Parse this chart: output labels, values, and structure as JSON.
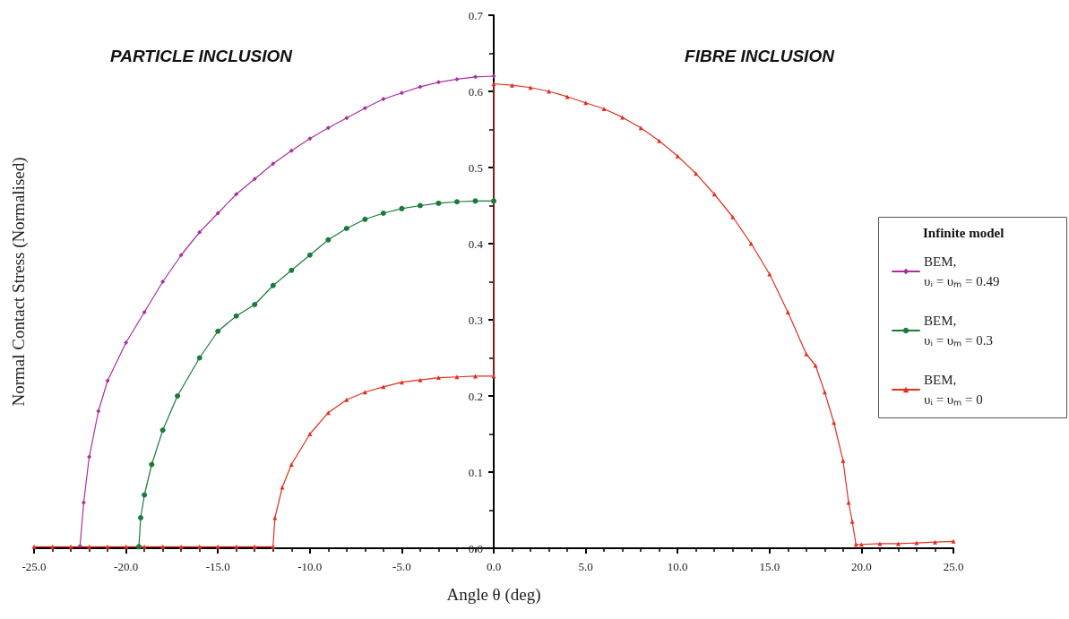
{
  "chart_data": {
    "type": "line",
    "xlabel": "Angle θ (deg)",
    "ylabel": "Normal Contact Stress (Normalised)",
    "legend_title": "Infinite model",
    "annotations": [
      "PARTICLE INCLUSION",
      "FIBRE INCLUSION"
    ],
    "xlim": [
      -25,
      25
    ],
    "xticks": [
      {
        "value": -25,
        "label": "-25.0"
      },
      {
        "value": -20,
        "label": "-20.0"
      },
      {
        "value": -15,
        "label": "-15.0"
      },
      {
        "value": -10,
        "label": "-10.0"
      },
      {
        "value": -5,
        "label": "-5.0"
      },
      {
        "value": 0,
        "label": "0.0"
      },
      {
        "value": 5,
        "label": "5.0"
      },
      {
        "value": 10,
        "label": "10.0"
      },
      {
        "value": 15,
        "label": "15.0"
      },
      {
        "value": 20,
        "label": "20.0"
      },
      {
        "value": 25,
        "label": "25.0"
      }
    ],
    "ylim": [
      0,
      0.7
    ],
    "yticks": [
      {
        "value": 0,
        "label": "0.0"
      },
      0.1,
      0.2,
      0.3,
      0.4,
      0.5,
      0.6,
      0.7
    ],
    "grid": false,
    "legend": "right",
    "series": [
      {
        "name": "BEM, υᵢ = υₘ = 0.49",
        "color": "#a8309f",
        "marker": "diamond",
        "x": [
          -22.5,
          -22.3,
          -22,
          -21.5,
          -21,
          -20,
          -19,
          -18,
          -17,
          -16,
          -15,
          -14,
          -13,
          -12,
          -11,
          -10,
          -9,
          -8,
          -7,
          -6,
          -5,
          -4,
          -3,
          -2,
          -1,
          0
        ],
        "values": [
          0.003,
          0.06,
          0.12,
          0.18,
          0.22,
          0.27,
          0.31,
          0.35,
          0.385,
          0.415,
          0.44,
          0.465,
          0.485,
          0.505,
          0.522,
          0.538,
          0.552,
          0.565,
          0.578,
          0.59,
          0.598,
          0.606,
          0.612,
          0.616,
          0.619,
          0.62
        ]
      },
      {
        "name": "BEM, υᵢ = υₘ = 0.3",
        "color": "#1a7a3a",
        "marker": "circle",
        "x": [
          -19.3,
          -19.2,
          -19,
          -18.6,
          -18,
          -17.2,
          -16,
          -15,
          -14,
          -13,
          -12,
          -11,
          -10,
          -9,
          -8,
          -7,
          -6,
          -5,
          -4,
          -3,
          -2,
          -1,
          0
        ],
        "values": [
          0.002,
          0.04,
          0.07,
          0.11,
          0.155,
          0.2,
          0.25,
          0.285,
          0.305,
          0.32,
          0.345,
          0.365,
          0.385,
          0.405,
          0.42,
          0.432,
          0.44,
          0.446,
          0.45,
          0.453,
          0.455,
          0.456,
          0.456
        ]
      },
      {
        "name": "BEM, υᵢ = υₘ = 0",
        "color": "#e03020",
        "marker": "triangle",
        "x": [
          -25,
          -24,
          -23,
          -22,
          -21,
          -20,
          -19,
          -18,
          -17,
          -16,
          -15,
          -14,
          -13,
          -12,
          -11.9,
          -11.5,
          -11,
          -10,
          -9,
          -8,
          -7,
          -6,
          -5,
          -4,
          -3,
          -2,
          -1,
          0,
          0,
          1,
          2,
          3,
          4,
          5,
          6,
          7,
          8,
          9,
          10,
          11,
          12,
          13,
          14,
          15,
          16,
          17,
          17.5,
          18,
          18.5,
          19,
          19.3,
          19.5,
          19.7,
          20,
          21,
          22,
          23,
          24,
          25
        ],
        "values": [
          0.002,
          0.002,
          0.002,
          0.002,
          0.002,
          0.002,
          0.002,
          0.002,
          0.002,
          0.002,
          0.002,
          0.002,
          0.002,
          0.002,
          0.04,
          0.08,
          0.11,
          0.15,
          0.178,
          0.195,
          0.205,
          0.212,
          0.218,
          0.221,
          0.224,
          0.225,
          0.226,
          0.226,
          0.61,
          0.608,
          0.605,
          0.6,
          0.593,
          0.585,
          0.577,
          0.566,
          0.552,
          0.535,
          0.515,
          0.492,
          0.465,
          0.435,
          0.4,
          0.36,
          0.31,
          0.255,
          0.24,
          0.205,
          0.165,
          0.115,
          0.06,
          0.035,
          0.005,
          0.005,
          0.006,
          0.006,
          0.007,
          0.008,
          0.009
        ]
      }
    ]
  }
}
